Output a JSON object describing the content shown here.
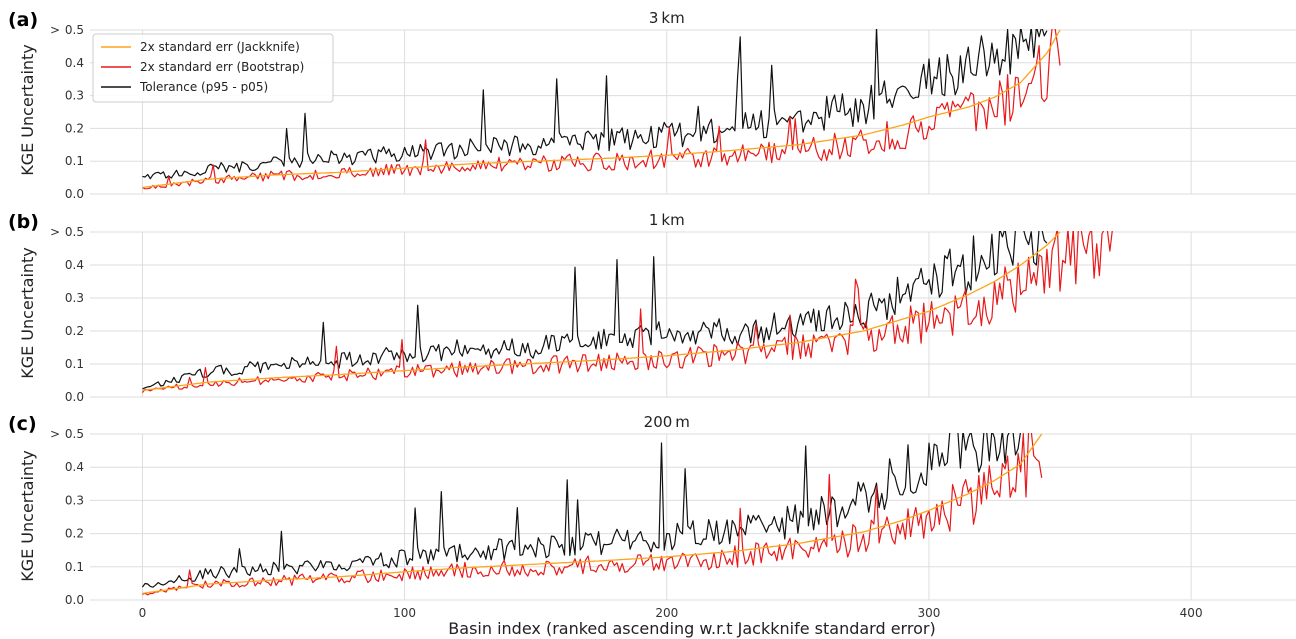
{
  "figure": {
    "xlabel": "Basin index (ranked ascending w.r.t Jackknife standard error)",
    "ylabel": "KGE Uncertainty",
    "ymax_prefix": ">",
    "legend": [
      {
        "label": "2x standard err (Jackknife)",
        "color": "#ffa31a"
      },
      {
        "label": "2x standard err (Bootstrap)",
        "color": "#e8191b"
      },
      {
        "label": "Tolerance (p95 - p05)",
        "color": "#111111"
      }
    ]
  },
  "chart_data": [
    {
      "type": "line",
      "panel": "(a)",
      "title": "3 km",
      "xlim": [
        -20,
        440
      ],
      "ylim": [
        0,
        0.5
      ],
      "xticks": [
        0,
        100,
        200,
        300,
        400
      ],
      "yticks": [
        "0.0",
        "0.1",
        "0.2",
        "0.3",
        "0.4",
        "0.5"
      ],
      "n_basins": 350,
      "grid": true,
      "legend_position": "top-left",
      "series": [
        {
          "name": "2x standard err (Jackknife)",
          "color": "#ffa31a",
          "x": [
            0,
            25,
            50,
            75,
            100,
            125,
            150,
            175,
            200,
            225,
            250,
            275,
            290,
            300,
            315,
            325,
            335,
            345,
            350
          ],
          "y": [
            0.02,
            0.045,
            0.058,
            0.066,
            0.079,
            0.092,
            0.1,
            0.108,
            0.118,
            0.133,
            0.15,
            0.18,
            0.21,
            0.235,
            0.265,
            0.295,
            0.34,
            0.43,
            0.5
          ]
        },
        {
          "name": "2x standard err (Bootstrap)",
          "color": "#e8191b",
          "x": [
            0,
            25,
            50,
            75,
            100,
            125,
            150,
            175,
            200,
            225,
            250,
            275,
            290,
            300,
            315,
            325,
            335,
            345,
            350
          ],
          "y": [
            0.018,
            0.042,
            0.055,
            0.062,
            0.074,
            0.085,
            0.093,
            0.098,
            0.108,
            0.118,
            0.13,
            0.158,
            0.185,
            0.21,
            0.24,
            0.27,
            0.3,
            0.38,
            0.5
          ]
        },
        {
          "name": "Tolerance (p95 - p05)",
          "color": "#111111",
          "x": [
            0,
            25,
            50,
            75,
            100,
            125,
            150,
            175,
            200,
            225,
            250,
            275,
            290,
            300,
            315,
            325,
            335,
            345
          ],
          "y": [
            0.05,
            0.075,
            0.095,
            0.11,
            0.125,
            0.14,
            0.15,
            0.165,
            0.18,
            0.2,
            0.225,
            0.27,
            0.32,
            0.34,
            0.38,
            0.44,
            0.48,
            0.5
          ]
        }
      ]
    },
    {
      "type": "line",
      "panel": "(b)",
      "title": "1 km",
      "xlim": [
        -20,
        440
      ],
      "ylim": [
        0,
        0.5
      ],
      "xticks": [
        0,
        100,
        200,
        300,
        400
      ],
      "yticks": [
        "0.0",
        "0.1",
        "0.2",
        "0.3",
        "0.4",
        "0.5"
      ],
      "n_basins": 370,
      "grid": true,
      "series": [
        {
          "name": "2x standard err (Jackknife)",
          "color": "#ffa31a",
          "x": [
            0,
            25,
            50,
            75,
            100,
            125,
            150,
            175,
            200,
            225,
            250,
            275,
            300,
            315,
            325,
            335,
            345,
            350
          ],
          "y": [
            0.02,
            0.045,
            0.058,
            0.068,
            0.08,
            0.092,
            0.102,
            0.112,
            0.125,
            0.142,
            0.165,
            0.2,
            0.26,
            0.31,
            0.35,
            0.4,
            0.46,
            0.5
          ]
        },
        {
          "name": "2x standard err (Bootstrap)",
          "color": "#e8191b",
          "x": [
            0,
            25,
            50,
            75,
            100,
            125,
            150,
            175,
            200,
            225,
            250,
            275,
            300,
            315,
            325,
            335,
            345,
            355,
            370
          ],
          "y": [
            0.018,
            0.042,
            0.054,
            0.064,
            0.076,
            0.086,
            0.096,
            0.104,
            0.114,
            0.128,
            0.148,
            0.18,
            0.23,
            0.27,
            0.3,
            0.35,
            0.4,
            0.47,
            0.5
          ]
        },
        {
          "name": "Tolerance (p95 - p05)",
          "color": "#111111",
          "x": [
            0,
            25,
            50,
            75,
            100,
            125,
            150,
            175,
            200,
            225,
            250,
            275,
            300,
            315,
            325,
            335,
            345
          ],
          "y": [
            0.03,
            0.075,
            0.095,
            0.11,
            0.13,
            0.145,
            0.15,
            0.17,
            0.19,
            0.2,
            0.22,
            0.26,
            0.34,
            0.4,
            0.45,
            0.48,
            0.5
          ]
        }
      ]
    },
    {
      "type": "line",
      "panel": "(c)",
      "title": "200 m",
      "xlim": [
        -20,
        440
      ],
      "ylim": [
        0,
        0.5
      ],
      "xticks": [
        0,
        100,
        200,
        300,
        400
      ],
      "yticks": [
        "0.0",
        "0.1",
        "0.2",
        "0.3",
        "0.4",
        "0.5"
      ],
      "n_basins": 343,
      "grid": true,
      "series": [
        {
          "name": "2x standard err (Jackknife)",
          "color": "#ffa31a",
          "x": [
            0,
            25,
            50,
            75,
            100,
            125,
            150,
            175,
            200,
            225,
            250,
            275,
            290,
            300,
            315,
            325,
            335,
            343
          ],
          "y": [
            0.02,
            0.048,
            0.06,
            0.07,
            0.085,
            0.098,
            0.108,
            0.118,
            0.13,
            0.146,
            0.17,
            0.205,
            0.24,
            0.27,
            0.32,
            0.36,
            0.41,
            0.5
          ]
        },
        {
          "name": "2x standard err (Bootstrap)",
          "color": "#e8191b",
          "x": [
            0,
            25,
            50,
            75,
            100,
            125,
            150,
            175,
            200,
            225,
            250,
            275,
            290,
            300,
            315,
            325,
            335,
            343
          ],
          "y": [
            0.018,
            0.046,
            0.057,
            0.066,
            0.08,
            0.09,
            0.098,
            0.106,
            0.116,
            0.13,
            0.15,
            0.185,
            0.22,
            0.245,
            0.3,
            0.34,
            0.39,
            0.5
          ]
        },
        {
          "name": "Tolerance (p95 - p05)",
          "color": "#111111",
          "x": [
            0,
            25,
            50,
            75,
            100,
            125,
            150,
            175,
            200,
            225,
            250,
            275,
            290,
            300,
            315,
            325,
            335
          ],
          "y": [
            0.04,
            0.08,
            0.095,
            0.11,
            0.125,
            0.145,
            0.16,
            0.17,
            0.19,
            0.21,
            0.24,
            0.3,
            0.39,
            0.44,
            0.48,
            0.5,
            0.5
          ]
        }
      ]
    }
  ]
}
